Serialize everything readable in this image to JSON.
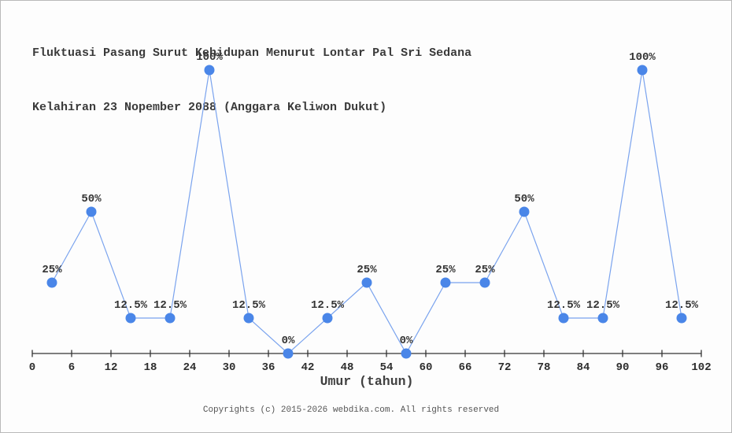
{
  "chart_data": {
    "type": "line",
    "title_lines": [
      "Fluktuasi Pasang Surut Kehidupan Menurut Lontar Pal Sri Sedana",
      "Kelahiran 23 Nopember 2088 (Anggara Keliwon Dukut)"
    ],
    "xlabel": "Umur (tahun)",
    "x": [
      3,
      9,
      15,
      21,
      27,
      33,
      39,
      45,
      51,
      57,
      63,
      69,
      75,
      81,
      87,
      93,
      99
    ],
    "values": [
      25,
      50,
      12.5,
      12.5,
      100,
      12.5,
      0,
      12.5,
      25,
      0,
      25,
      25,
      50,
      12.5,
      12.5,
      100,
      12.5
    ],
    "point_labels": [
      "25%",
      "50%",
      "12.5%",
      "12.5%",
      "100%",
      "12.5%",
      "0%",
      "12.5%",
      "25%",
      "0%",
      "25%",
      "25%",
      "50%",
      "12.5%",
      "12.5%",
      "100%",
      "12.5%"
    ],
    "x_ticks": [
      0,
      6,
      12,
      18,
      24,
      30,
      36,
      42,
      48,
      54,
      60,
      66,
      72,
      78,
      84,
      90,
      96,
      102
    ],
    "xlim": [
      0,
      102
    ],
    "ylim": [
      0,
      100
    ],
    "grid": false,
    "legend": "none",
    "line_color": "#7aa3ee",
    "marker_color": "#4a86e8",
    "axis_color": "#333333"
  },
  "footer": {
    "text": "Copyrights (c) 2015-2026 webdika.com. All rights reserved"
  }
}
